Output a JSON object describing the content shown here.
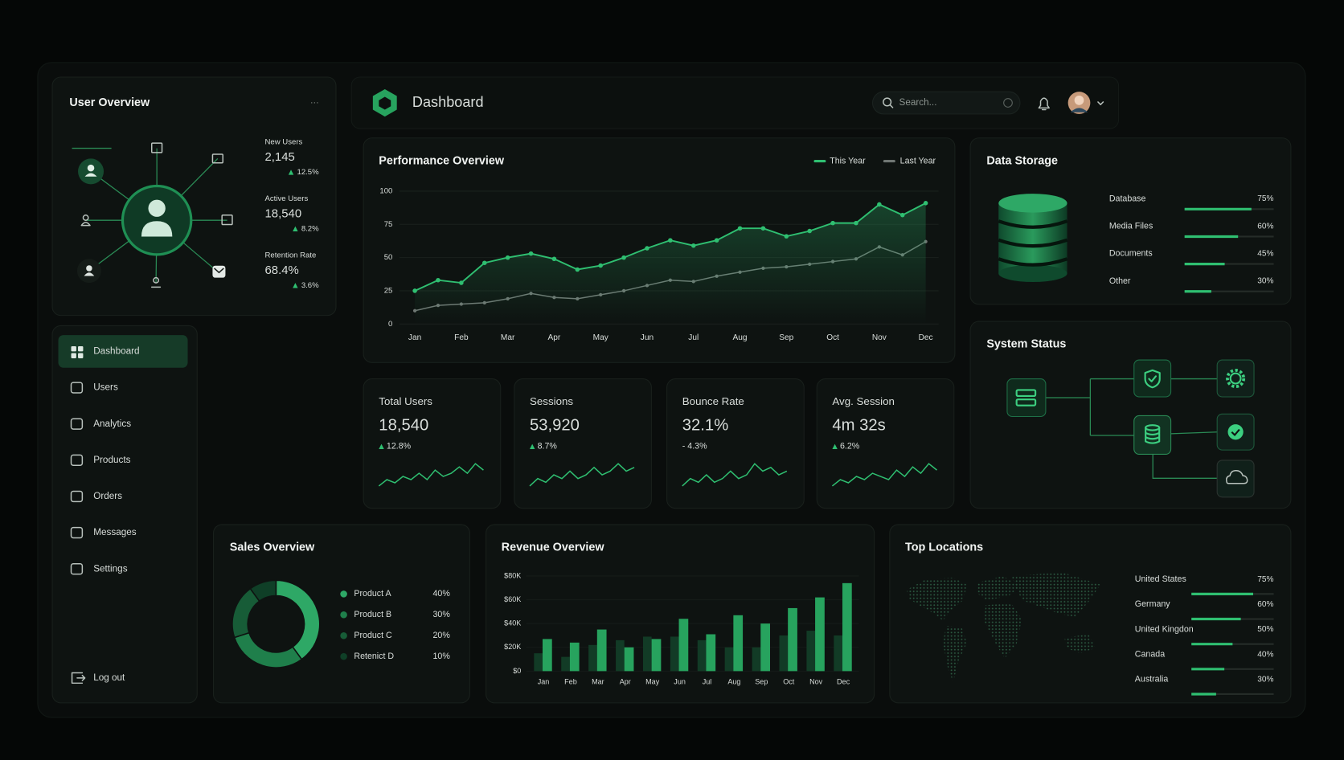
{
  "user_overview": {
    "title": "User Overview",
    "stats": [
      {
        "label": "New Users",
        "value": "2,145",
        "change": "12.5%"
      },
      {
        "label": "Active Users",
        "value": "18,540",
        "change": "8.2%"
      },
      {
        "label": "Retention Rate",
        "value": "68.4%",
        "change": "3.6%"
      }
    ]
  },
  "header": {
    "title": "Dashboard",
    "search": "Search..."
  },
  "nav": {
    "items": [
      "Dashboard",
      "Users",
      "Analytics",
      "Products",
      "Orders",
      "Messages",
      "Settings"
    ],
    "active": 0,
    "logout": "Log out"
  },
  "performance": {
    "type": "line",
    "title": "Performance Overview",
    "categories": [
      "Jan",
      null,
      "Feb",
      null,
      "Mar",
      null,
      "Apr",
      null,
      "May",
      null,
      "Jun",
      null,
      "Jul",
      null,
      "Aug",
      null,
      "Sep",
      null,
      "Oct",
      null,
      "Nov",
      null,
      "Dec"
    ],
    "series": [
      {
        "name": "This Year",
        "color": "#2fbf71",
        "values": [
          25,
          33,
          31,
          46,
          50,
          53,
          49,
          41,
          44,
          50,
          57,
          63,
          59,
          63,
          72,
          72,
          66,
          70,
          76,
          76,
          90,
          82,
          91
        ]
      },
      {
        "name": "Last Year",
        "color": "#6f7673",
        "values": [
          10,
          14,
          15,
          16,
          19,
          23,
          20,
          19,
          22,
          25,
          29,
          33,
          32,
          36,
          39,
          42,
          43,
          45,
          47,
          49,
          58,
          52,
          62
        ]
      }
    ],
    "ylim": [
      0,
      100
    ],
    "yticks": [
      0,
      25,
      50,
      75,
      100
    ],
    "grid": true
  },
  "data_storage": {
    "title": "Data Storage",
    "items": [
      {
        "label": "Database",
        "value": 75,
        "value_label": "75%"
      },
      {
        "label": "Media Files",
        "value": 60,
        "value_label": "60%"
      },
      {
        "label": "Documents",
        "value": 45,
        "value_label": "45%"
      },
      {
        "label": "Other",
        "value": 30,
        "value_label": "30%"
      }
    ]
  },
  "system_status": {
    "title": "System Status"
  },
  "kpis": [
    {
      "label": "Total Users",
      "value": "18,540",
      "change": "12.8%",
      "trend": "up",
      "spark": [
        3,
        5,
        4,
        6,
        5,
        7,
        5,
        8,
        6,
        7,
        9,
        7,
        10,
        8
      ]
    },
    {
      "label": "Sessions",
      "value": "53,920",
      "change": "8.7%",
      "trend": "up",
      "spark": [
        4,
        6,
        5,
        7,
        6,
        8,
        6,
        7,
        9,
        7,
        8,
        10,
        8,
        9
      ]
    },
    {
      "label": "Bounce Rate",
      "value": "32.1%",
      "change": "- 4.3%",
      "trend": "down",
      "spark": [
        4,
        6,
        5,
        7,
        5,
        6,
        8,
        6,
        7,
        10,
        8,
        9,
        7,
        8
      ]
    },
    {
      "label": "Avg. Session",
      "value": "4m 32s",
      "change": "6.2%",
      "trend": "up",
      "spark": [
        3,
        5,
        4,
        6,
        5,
        7,
        6,
        5,
        8,
        6,
        9,
        7,
        10,
        8
      ]
    }
  ],
  "sales": {
    "type": "donut",
    "title": "Sales Overview",
    "categories": [
      "Product A",
      "Product B",
      "Product C",
      "Retenict D"
    ],
    "values": [
      40,
      30,
      20,
      10
    ],
    "value_labels": [
      "40%",
      "30%",
      "20%",
      "10%"
    ],
    "colors": [
      "#2ea866",
      "#1f7f4b",
      "#175c37",
      "#0f3f27"
    ]
  },
  "revenue": {
    "type": "bar",
    "title": "Revenue Overview",
    "categories": [
      "Jan",
      "Feb",
      "Mar",
      "Apr",
      "May",
      "Jun",
      "Jul",
      "Aug",
      "Sep",
      "Oct",
      "Nov",
      "Dec"
    ],
    "series": [
      {
        "color": "#123b26",
        "values": [
          15000,
          12000,
          22000,
          26000,
          29000,
          29000,
          26000,
          20000,
          20000,
          30000,
          34000,
          30000
        ]
      },
      {
        "color": "#27a35e",
        "values": [
          27000,
          24000,
          35000,
          20000,
          27000,
          44000,
          31000,
          47000,
          40000,
          53000,
          62000,
          74000
        ]
      }
    ],
    "ylim": [
      0,
      80000
    ],
    "yticks": [
      {
        "value": 0,
        "label": "$0"
      },
      {
        "value": 20000,
        "label": "$20K"
      },
      {
        "value": 40000,
        "label": "$40K"
      },
      {
        "value": 60000,
        "label": "$60K"
      },
      {
        "value": 80000,
        "label": "$80K"
      }
    ]
  },
  "top_locations": {
    "title": "Top Locations",
    "items": [
      {
        "label": "United States",
        "value": 75,
        "value_label": "75%"
      },
      {
        "label": "Germany",
        "value": 60,
        "value_label": "60%"
      },
      {
        "label": "United Kingdon",
        "value": 50,
        "value_label": "50%"
      },
      {
        "label": "Canada",
        "value": 40,
        "value_label": "40%"
      },
      {
        "label": "Australia",
        "value": 30,
        "value_label": "30%"
      }
    ]
  }
}
